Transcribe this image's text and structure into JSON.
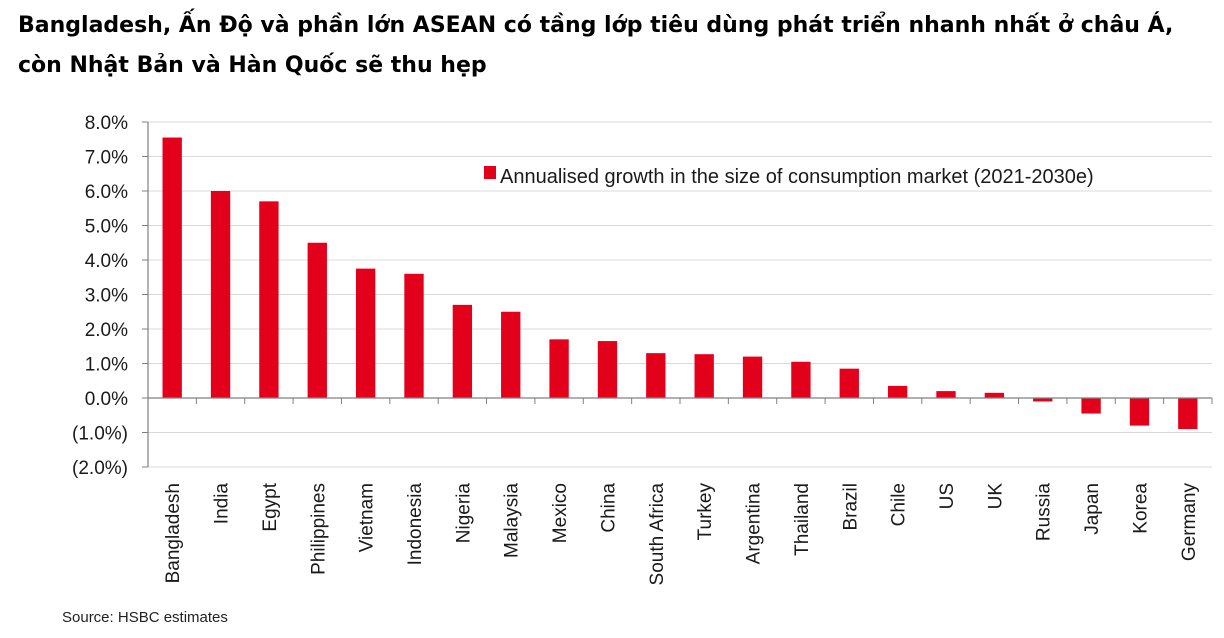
{
  "title": "Bangladesh, Ấn Độ và phần lớn ASEAN có tầng lớp tiêu dùng phát triển nhanh nhất ở châu Á, còn Nhật Bản và Hàn Quốc sẽ thu hẹp",
  "source": "Source: HSBC estimates",
  "chart_data": {
    "type": "bar",
    "categories": [
      "Bangladesh",
      "India",
      "Egypt",
      "Philippines",
      "Vietnam",
      "Indonesia",
      "Nigeria",
      "Malaysia",
      "Mexico",
      "China",
      "South Africa",
      "Turkey",
      "Argentina",
      "Thailand",
      "Brazil",
      "Chile",
      "US",
      "UK",
      "Russia",
      "Japan",
      "Korea",
      "Germany"
    ],
    "series": [
      {
        "name": "Annualised growth in the size of consumption market (2021-2030e)",
        "values": [
          7.55,
          6.0,
          5.7,
          4.5,
          3.75,
          3.6,
          2.7,
          2.5,
          1.7,
          1.65,
          1.3,
          1.27,
          1.2,
          1.05,
          0.85,
          0.35,
          0.2,
          0.15,
          -0.1,
          -0.45,
          -0.8,
          -0.9
        ]
      }
    ],
    "ylim": [
      -2,
      8
    ],
    "yticks": [
      8,
      7,
      6,
      5,
      4,
      3,
      2,
      1,
      0,
      -1,
      -2
    ],
    "ytick_labels": [
      "8.0%",
      "7.0%",
      "6.0%",
      "5.0%",
      "4.0%",
      "3.0%",
      "2.0%",
      "1.0%",
      "0.0%",
      "(1.0%)",
      "(2.0%)"
    ],
    "grid": true,
    "legend_position": "top-right",
    "bar_color": "#e3001b"
  }
}
